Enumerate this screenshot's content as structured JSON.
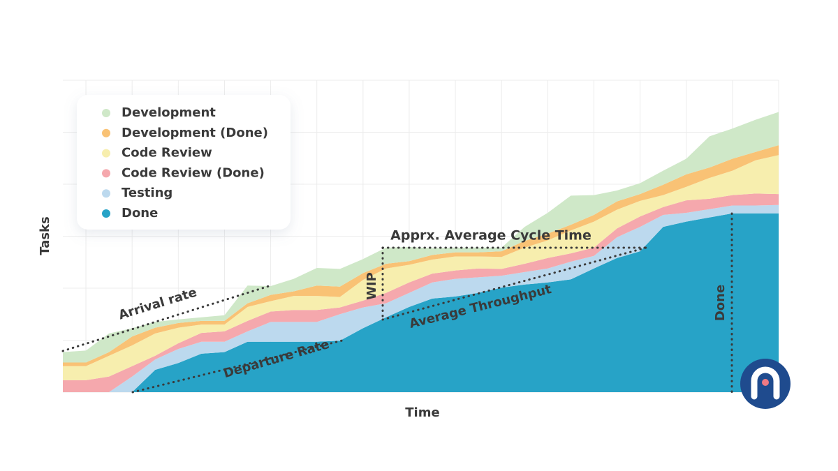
{
  "chart_data": {
    "type": "stacked_area",
    "x_label": "Time",
    "y_label": "Tasks",
    "x": [
      0,
      1,
      2,
      3,
      4,
      5,
      6,
      7,
      8,
      9,
      10,
      11,
      12,
      13,
      14,
      15,
      16,
      17,
      18,
      19,
      20,
      21,
      22,
      23,
      24,
      25,
      26,
      27,
      28,
      29,
      30,
      31
    ],
    "xlim": [
      0,
      31
    ],
    "ylim": [
      0,
      60
    ],
    "xticks": [
      1,
      3,
      5,
      7,
      9,
      11,
      13,
      15,
      17,
      19,
      21,
      23,
      25,
      27,
      29,
      31
    ],
    "yticks": [
      0,
      10,
      20,
      30,
      40,
      50,
      60
    ],
    "tick_labels": false,
    "grid": true,
    "legend": "upper left",
    "series": [
      {
        "name": "Development",
        "color": "#cfe8c8",
        "values": [
          2.0,
          2.3,
          3.6,
          1.6,
          1.1,
          0.7,
          0.7,
          1.1,
          3.4,
          1.7,
          2.4,
          3.4,
          3.4,
          2.7,
          3.1,
          2.7,
          1.3,
          0.9,
          0.9,
          0.7,
          2.7,
          4.0,
          5.6,
          3.8,
          2.1,
          2.1,
          2.7,
          3.0,
          6.0,
          5.8,
          6.2,
          6.4
        ]
      },
      {
        "name": "Development (Done)",
        "color": "#f9c275",
        "values": [
          0.7,
          0.7,
          0.7,
          1.7,
          1.1,
          0.9,
          0.7,
          0.7,
          0.7,
          1.2,
          0.9,
          2.0,
          2.0,
          1.3,
          0.9,
          0.7,
          0.9,
          0.8,
          0.8,
          1.1,
          1.3,
          1.3,
          1.1,
          1.3,
          1.6,
          1.3,
          2.0,
          2.4,
          2.0,
          2.3,
          1.6,
          1.9
        ]
      },
      {
        "name": "Code Review",
        "color": "#f7eeae",
        "values": [
          2.7,
          2.7,
          4.0,
          4.0,
          4.3,
          3.0,
          1.6,
          1.3,
          2.7,
          2.0,
          2.7,
          2.7,
          2.0,
          4.0,
          4.7,
          3.4,
          2.7,
          2.7,
          2.3,
          2.3,
          3.1,
          3.4,
          4.4,
          5.0,
          3.6,
          3.0,
          2.3,
          2.6,
          4.0,
          4.7,
          6.4,
          7.5
        ]
      },
      {
        "name": "Code Review (Done)",
        "color": "#f5a8ad",
        "values": [
          2.3,
          2.3,
          3.0,
          2.0,
          0.7,
          1.1,
          1.7,
          2.0,
          2.0,
          2.0,
          2.3,
          2.3,
          1.3,
          1.3,
          2.0,
          2.0,
          1.7,
          1.6,
          1.7,
          1.3,
          1.6,
          2.0,
          1.6,
          1.6,
          1.7,
          2.0,
          1.5,
          2.4,
          2.0,
          2.0,
          2.3,
          2.1
        ]
      },
      {
        "name": "Testing",
        "color": "#bcd9ee",
        "values": [
          0,
          0,
          0,
          3.0,
          2.0,
          2.7,
          2.3,
          2.0,
          2.0,
          3.8,
          3.8,
          3.8,
          5.1,
          4.0,
          2.7,
          2.7,
          3.1,
          3.4,
          3.0,
          2.3,
          2.4,
          2.7,
          3.4,
          2.4,
          4.0,
          4.7,
          2.3,
          1.7,
          1.6,
          1.5,
          1.5,
          1.6
        ]
      },
      {
        "name": "Done",
        "color": "#27a3c7",
        "values": [
          0,
          0,
          0,
          0,
          4.3,
          5.6,
          7.4,
          7.7,
          9.7,
          9.7,
          9.7,
          9.7,
          9.9,
          12.3,
          14.4,
          16.4,
          18.0,
          18.4,
          19.1,
          20.1,
          20.7,
          21.1,
          21.7,
          23.8,
          25.8,
          27.1,
          31.8,
          32.8,
          33.6,
          34.4,
          34.4,
          34.4
        ]
      }
    ],
    "annotations": [
      "Arrival rate",
      "Departure Rate",
      "Apprx. Average Cycle Time",
      "WIP",
      "Average Throughput",
      "Done"
    ]
  }
}
